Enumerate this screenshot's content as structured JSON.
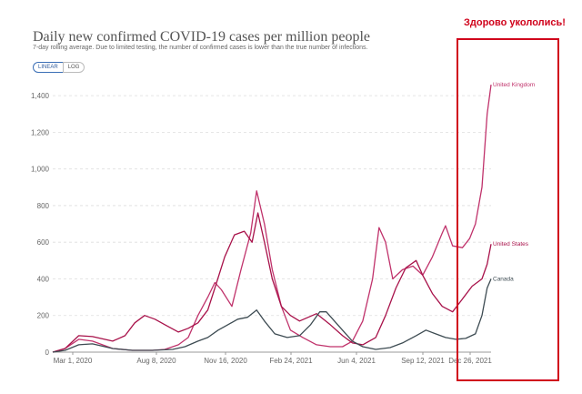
{
  "title": "Daily new confirmed COVID-19 cases per million people",
  "subtitle": "7-day rolling average. Due to limited testing, the number of confirmed cases is lower than the true number of infections.",
  "scale_toggle": {
    "linear": "LINEAR",
    "log": "LOG",
    "selected": "linear"
  },
  "annotation": {
    "text": "Здорово укололись!",
    "color": "#d0021b"
  },
  "colors": {
    "united_kingdom": "#c0326b",
    "united_states": "#a8124a",
    "canada": "#3d4b52",
    "highlight": "#d0021b",
    "grid": "#dddddd"
  },
  "chart_data": {
    "type": "line",
    "x_tick_labels": [
      "Mar 1, 2020",
      "Aug 8, 2020",
      "Nov 16, 2020",
      "Feb 24, 2021",
      "Jun 4, 2021",
      "Sep 12, 2021",
      "Dec 26, 2021"
    ],
    "y_ticks": [
      0,
      200,
      400,
      600,
      800,
      1000,
      1200,
      1400
    ],
    "y_tick_labels": [
      "0",
      "200",
      "400",
      "600",
      "800",
      "1,000",
      "1,200",
      "1,400"
    ],
    "ylim": [
      0,
      1500
    ],
    "grid": "horizontal dashed",
    "series": [
      {
        "name": "United Kingdom",
        "color_key": "united_kingdom",
        "points": [
          [
            "2020-03-01",
            0
          ],
          [
            "2020-03-20",
            20
          ],
          [
            "2020-04-10",
            70
          ],
          [
            "2020-05-01",
            60
          ],
          [
            "2020-06-01",
            20
          ],
          [
            "2020-07-01",
            10
          ],
          [
            "2020-08-01",
            10
          ],
          [
            "2020-08-20",
            15
          ],
          [
            "2020-09-10",
            40
          ],
          [
            "2020-09-25",
            80
          ],
          [
            "2020-10-10",
            200
          ],
          [
            "2020-10-25",
            300
          ],
          [
            "2020-11-05",
            380
          ],
          [
            "2020-11-15",
            340
          ],
          [
            "2020-12-01",
            250
          ],
          [
            "2020-12-15",
            450
          ],
          [
            "2020-12-30",
            650
          ],
          [
            "2021-01-08",
            880
          ],
          [
            "2021-01-20",
            700
          ],
          [
            "2021-02-01",
            450
          ],
          [
            "2021-02-15",
            250
          ],
          [
            "2021-03-01",
            120
          ],
          [
            "2021-03-20",
            80
          ],
          [
            "2021-04-10",
            40
          ],
          [
            "2021-05-01",
            30
          ],
          [
            "2021-05-20",
            30
          ],
          [
            "2021-06-04",
            60
          ],
          [
            "2021-06-20",
            170
          ],
          [
            "2021-07-05",
            400
          ],
          [
            "2021-07-15",
            680
          ],
          [
            "2021-07-25",
            600
          ],
          [
            "2021-08-05",
            400
          ],
          [
            "2021-08-20",
            450
          ],
          [
            "2021-09-05",
            470
          ],
          [
            "2021-09-20",
            420
          ],
          [
            "2021-10-05",
            520
          ],
          [
            "2021-10-20",
            650
          ],
          [
            "2021-10-25",
            690
          ],
          [
            "2021-11-05",
            580
          ],
          [
            "2021-11-20",
            570
          ],
          [
            "2021-12-01",
            620
          ],
          [
            "2021-12-10",
            700
          ],
          [
            "2021-12-20",
            900
          ],
          [
            "2021-12-28",
            1300
          ],
          [
            "2022-01-03",
            1460
          ]
        ]
      },
      {
        "name": "United States",
        "color_key": "united_states",
        "points": [
          [
            "2020-03-01",
            0
          ],
          [
            "2020-03-20",
            20
          ],
          [
            "2020-04-10",
            90
          ],
          [
            "2020-05-01",
            85
          ],
          [
            "2020-06-01",
            60
          ],
          [
            "2020-06-20",
            90
          ],
          [
            "2020-07-05",
            160
          ],
          [
            "2020-07-20",
            200
          ],
          [
            "2020-08-05",
            180
          ],
          [
            "2020-08-20",
            150
          ],
          [
            "2020-09-10",
            110
          ],
          [
            "2020-09-25",
            130
          ],
          [
            "2020-10-10",
            160
          ],
          [
            "2020-10-25",
            230
          ],
          [
            "2020-11-05",
            350
          ],
          [
            "2020-11-20",
            520
          ],
          [
            "2020-12-05",
            640
          ],
          [
            "2020-12-20",
            660
          ],
          [
            "2021-01-01",
            600
          ],
          [
            "2021-01-10",
            760
          ],
          [
            "2021-01-20",
            600
          ],
          [
            "2021-02-01",
            400
          ],
          [
            "2021-02-15",
            250
          ],
          [
            "2021-03-01",
            200
          ],
          [
            "2021-03-15",
            170
          ],
          [
            "2021-04-10",
            210
          ],
          [
            "2021-05-01",
            150
          ],
          [
            "2021-05-20",
            90
          ],
          [
            "2021-06-04",
            50
          ],
          [
            "2021-06-20",
            40
          ],
          [
            "2021-07-10",
            80
          ],
          [
            "2021-07-25",
            200
          ],
          [
            "2021-08-10",
            350
          ],
          [
            "2021-08-25",
            460
          ],
          [
            "2021-09-10",
            500
          ],
          [
            "2021-09-20",
            420
          ],
          [
            "2021-10-05",
            320
          ],
          [
            "2021-10-20",
            250
          ],
          [
            "2021-11-05",
            220
          ],
          [
            "2021-11-20",
            290
          ],
          [
            "2021-12-05",
            360
          ],
          [
            "2021-12-20",
            400
          ],
          [
            "2021-12-28",
            480
          ],
          [
            "2022-01-03",
            590
          ]
        ]
      },
      {
        "name": "Canada",
        "color_key": "canada",
        "points": [
          [
            "2020-03-01",
            0
          ],
          [
            "2020-03-20",
            10
          ],
          [
            "2020-04-10",
            40
          ],
          [
            "2020-05-01",
            45
          ],
          [
            "2020-06-01",
            20
          ],
          [
            "2020-07-01",
            10
          ],
          [
            "2020-08-01",
            10
          ],
          [
            "2020-09-01",
            15
          ],
          [
            "2020-09-20",
            30
          ],
          [
            "2020-10-10",
            60
          ],
          [
            "2020-10-25",
            80
          ],
          [
            "2020-11-10",
            120
          ],
          [
            "2020-11-25",
            150
          ],
          [
            "2020-12-10",
            180
          ],
          [
            "2020-12-25",
            190
          ],
          [
            "2021-01-08",
            230
          ],
          [
            "2021-01-20",
            170
          ],
          [
            "2021-02-05",
            100
          ],
          [
            "2021-02-24",
            80
          ],
          [
            "2021-03-15",
            90
          ],
          [
            "2021-04-01",
            150
          ],
          [
            "2021-04-15",
            220
          ],
          [
            "2021-04-25",
            220
          ],
          [
            "2021-05-10",
            160
          ],
          [
            "2021-05-25",
            100
          ],
          [
            "2021-06-04",
            60
          ],
          [
            "2021-06-20",
            30
          ],
          [
            "2021-07-10",
            15
          ],
          [
            "2021-08-01",
            25
          ],
          [
            "2021-08-20",
            50
          ],
          [
            "2021-09-10",
            90
          ],
          [
            "2021-09-25",
            120
          ],
          [
            "2021-10-10",
            100
          ],
          [
            "2021-10-25",
            80
          ],
          [
            "2021-11-10",
            70
          ],
          [
            "2021-11-25",
            75
          ],
          [
            "2021-12-10",
            100
          ],
          [
            "2021-12-20",
            200
          ],
          [
            "2021-12-28",
            350
          ],
          [
            "2022-01-03",
            400
          ]
        ]
      }
    ]
  }
}
